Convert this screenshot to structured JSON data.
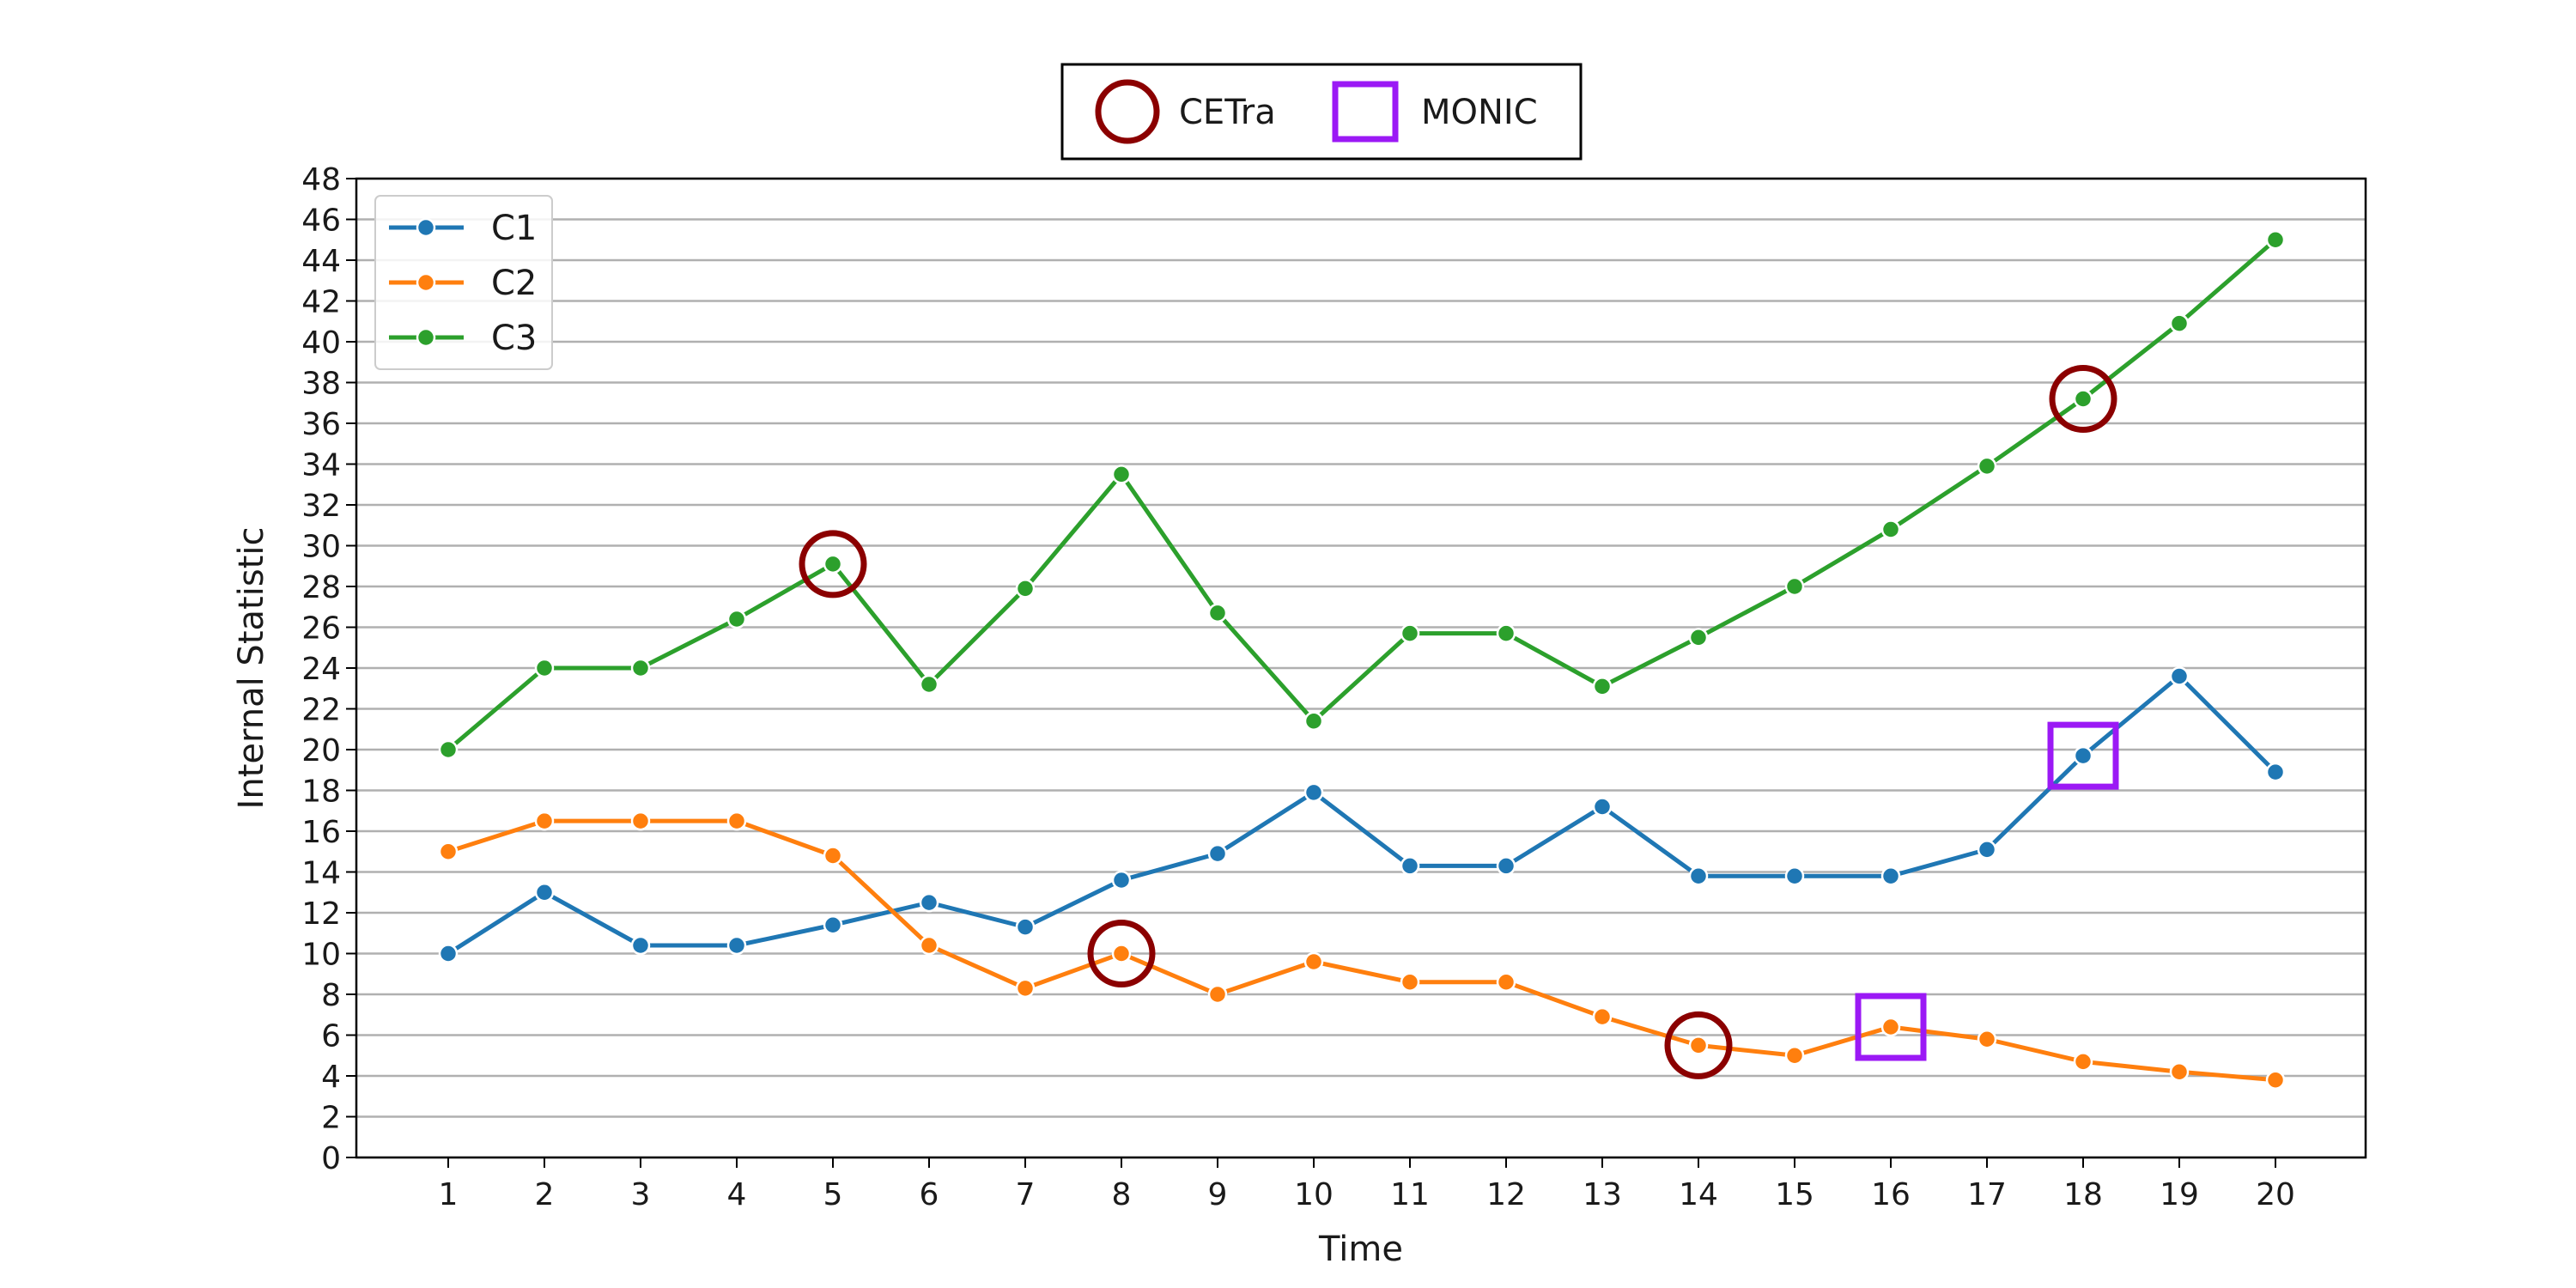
{
  "chart_data": {
    "type": "line",
    "xlabel": "Time",
    "ylabel": "Internal Statistic",
    "x": [
      1,
      2,
      3,
      4,
      5,
      6,
      7,
      8,
      9,
      10,
      11,
      12,
      13,
      14,
      15,
      16,
      17,
      18,
      19,
      20
    ],
    "ylim": [
      0,
      48
    ],
    "yticks": [
      0,
      2,
      4,
      6,
      8,
      10,
      12,
      14,
      16,
      18,
      20,
      22,
      24,
      26,
      28,
      30,
      32,
      34,
      36,
      38,
      40,
      42,
      44,
      46,
      48
    ],
    "grid": "horizontal",
    "series": [
      {
        "name": "C1",
        "color": "#1f77b4",
        "values": [
          10.0,
          13.0,
          10.4,
          10.4,
          11.4,
          12.5,
          11.3,
          13.6,
          14.9,
          17.9,
          14.3,
          14.3,
          17.2,
          13.8,
          13.8,
          13.8,
          15.1,
          19.7,
          23.6,
          18.9
        ]
      },
      {
        "name": "C2",
        "color": "#ff7f0e",
        "values": [
          15.0,
          16.5,
          16.5,
          16.5,
          14.8,
          10.4,
          8.3,
          10.0,
          8.0,
          9.6,
          8.6,
          8.6,
          6.9,
          5.5,
          5.0,
          6.4,
          5.8,
          4.7,
          4.2,
          3.8
        ]
      },
      {
        "name": "C3",
        "color": "#2ca02c",
        "values": [
          20.0,
          24.0,
          24.0,
          26.4,
          29.1,
          23.2,
          27.9,
          33.5,
          26.7,
          21.4,
          25.7,
          25.7,
          23.1,
          25.5,
          28.0,
          30.8,
          33.9,
          37.2,
          40.9,
          45.0
        ]
      }
    ],
    "series_legend": "top-left",
    "event_legend": [
      {
        "name": "CETra",
        "marker": "circle",
        "color": "#8b0000"
      },
      {
        "name": "MONIC",
        "marker": "square",
        "color": "#9b19f5"
      }
    ],
    "event_legend_position": "top-center",
    "events": [
      {
        "method": "CETra",
        "series": "C3",
        "x": 5,
        "y": 29.1
      },
      {
        "method": "CETra",
        "series": "C2",
        "x": 8,
        "y": 10.0
      },
      {
        "method": "CETra",
        "series": "C2",
        "x": 14,
        "y": 5.5
      },
      {
        "method": "CETra",
        "series": "C3",
        "x": 18,
        "y": 37.2
      },
      {
        "method": "MONIC",
        "series": "C2",
        "x": 16,
        "y": 6.4
      },
      {
        "method": "MONIC",
        "series": "C1",
        "x": 18,
        "y": 19.7
      }
    ]
  }
}
